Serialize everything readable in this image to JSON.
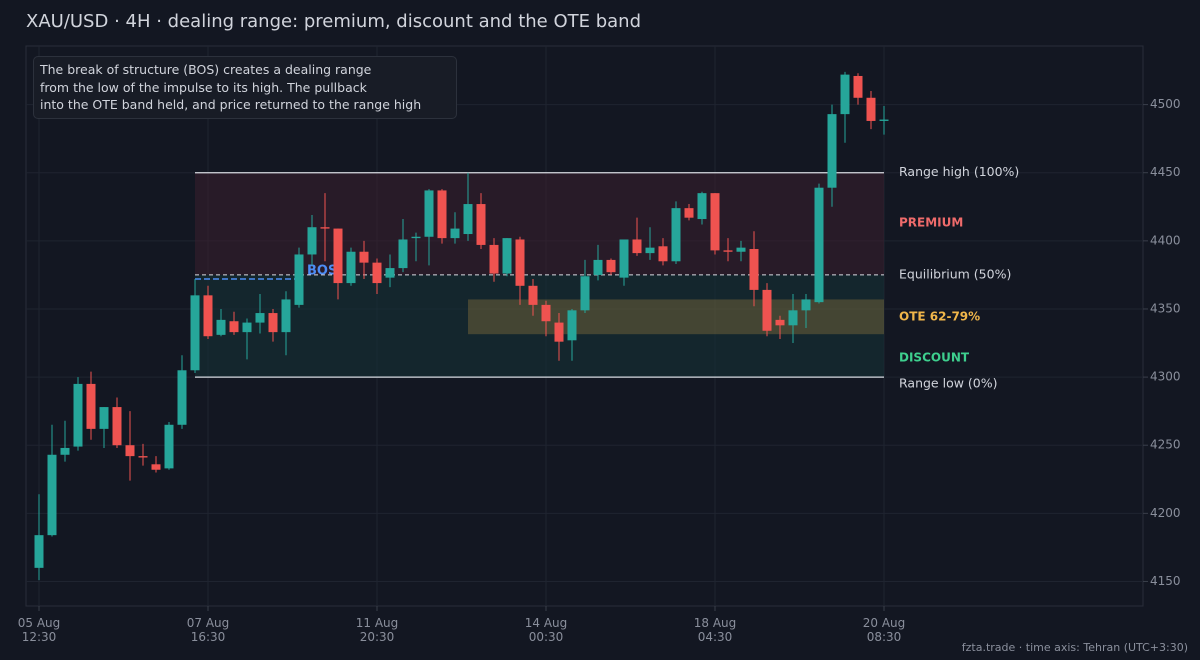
{
  "chart_data": {
    "type": "candlestick",
    "title": "XAU/USD · 4H · dealing range: premium, discount and the OTE band",
    "annotation": "The break of structure (BOS) creates a dealing range\nfrom the low of the impulse to its high. The pullback\ninto the OTE band held, and price returned to the range high",
    "footer": "fzta.trade  ·  time axis: Tehran (UTC+3:30)",
    "categories": [
      "05 Aug\n12:30",
      null,
      null,
      null,
      null,
      null,
      null,
      null,
      null,
      null,
      null,
      null,
      null,
      "07 Aug\n16:30",
      null,
      null,
      null,
      null,
      null,
      null,
      null,
      null,
      null,
      null,
      null,
      null,
      "11 Aug\n20:30",
      null,
      null,
      null,
      null,
      null,
      null,
      null,
      null,
      null,
      null,
      null,
      null,
      "14 Aug\n00:30",
      null,
      null,
      null,
      null,
      null,
      null,
      null,
      null,
      null,
      null,
      null,
      null,
      "18 Aug\n04:30",
      null,
      null,
      null,
      null,
      null,
      null,
      null,
      null,
      null,
      null,
      null,
      null,
      "20 Aug\n08:30"
    ],
    "open": [
      4160,
      4184,
      4243,
      4249,
      4295,
      4262,
      4278,
      4250,
      4242,
      4236,
      4233,
      4265,
      4305,
      4360,
      4331,
      4341,
      4333,
      4340,
      4347,
      4333,
      4353,
      4390,
      4410,
      4409,
      4369,
      4392,
      4384,
      4373,
      4380,
      4402,
      4403,
      4437,
      4402,
      4405,
      4427,
      4397,
      4376,
      4401,
      4367,
      4353,
      4340,
      4327,
      4349,
      4375,
      4386,
      4373,
      4401,
      4391,
      4396,
      4385,
      4424,
      4416,
      4435,
      4393,
      4392,
      4394,
      4364,
      4342,
      4338,
      4349,
      4355,
      4439,
      4493,
      4521,
      4505,
      4488
    ],
    "high": [
      4214,
      4265,
      4268,
      4300,
      4304,
      4278,
      4285,
      4275,
      4251,
      4242,
      4267,
      4316,
      4372,
      4367,
      4350,
      4348,
      4343,
      4361,
      4350,
      4363,
      4395,
      4419,
      4435,
      4409,
      4395,
      4400,
      4387,
      4390,
      4416,
      4406,
      4438,
      4438,
      4421,
      4450,
      4435,
      4402,
      4402,
      4403,
      4372,
      4356,
      4347,
      4350,
      4386,
      4397,
      4387,
      4401,
      4417,
      4410,
      4402,
      4429,
      4427,
      4436,
      4435,
      4402,
      4400,
      4407,
      4369,
      4345,
      4361,
      4361,
      4442,
      4500,
      4524,
      4523,
      4510,
      4499
    ],
    "low": [
      4151,
      4183,
      4238,
      4246,
      4254,
      4248,
      4248,
      4224,
      4235,
      4230,
      4232,
      4262,
      4303,
      4328,
      4330,
      4331,
      4313,
      4332,
      4326,
      4316,
      4351,
      4382,
      4385,
      4357,
      4367,
      4372,
      4361,
      4366,
      4377,
      4385,
      4382,
      4398,
      4398,
      4400,
      4394,
      4370,
      4374,
      4353,
      4345,
      4330,
      4312,
      4312,
      4347,
      4371,
      4375,
      4367,
      4389,
      4386,
      4382,
      4383,
      4415,
      4412,
      4390,
      4385,
      4385,
      4352,
      4330,
      4328,
      4325,
      4336,
      4354,
      4425,
      4472,
      4500,
      4482,
      4478
    ],
    "close": [
      4184,
      4243,
      4248,
      4295,
      4262,
      4278,
      4250,
      4242,
      4241,
      4232,
      4265,
      4305,
      4360,
      4330,
      4342,
      4333,
      4340,
      4347,
      4333,
      4357,
      4390,
      4410,
      4409,
      4369,
      4392,
      4384,
      4369,
      4380,
      4401,
      4403,
      4437,
      4402,
      4409,
      4427,
      4397,
      4376,
      4402,
      4367,
      4353,
      4341,
      4326,
      4349,
      4374,
      4386,
      4377,
      4401,
      4391,
      4395,
      4385,
      4424,
      4417,
      4435,
      4393,
      4392,
      4395,
      4364,
      4334,
      4338,
      4349,
      4357,
      4439,
      4493,
      4522,
      4505,
      4488,
      4489
    ],
    "up_color": "#26a69a",
    "down_color": "#ef5350",
    "ylim": [
      4132,
      4543
    ],
    "yticks": [
      4150,
      4200,
      4250,
      4300,
      4350,
      4400,
      4450,
      4500
    ],
    "grid": true,
    "levels": {
      "range_high": {
        "value": 4450,
        "label": "Range high (100%)"
      },
      "equilibrium": {
        "value": 4375,
        "label": "Equilibrium (50%)"
      },
      "range_low": {
        "value": 4300,
        "label": "Range low (0%)"
      },
      "ote": {
        "values": [
          4331.5,
          4357
        ],
        "label": "OTE 62-79%",
        "color": "#f0b64a"
      },
      "premium": {
        "label": "PREMIUM",
        "color": "#ef6b6b"
      },
      "discount": {
        "label": "DISCOUNT",
        "color": "#3ecf8e"
      },
      "bos": {
        "value": 4372,
        "label": "BOS",
        "color": "#4d8df5"
      }
    }
  }
}
